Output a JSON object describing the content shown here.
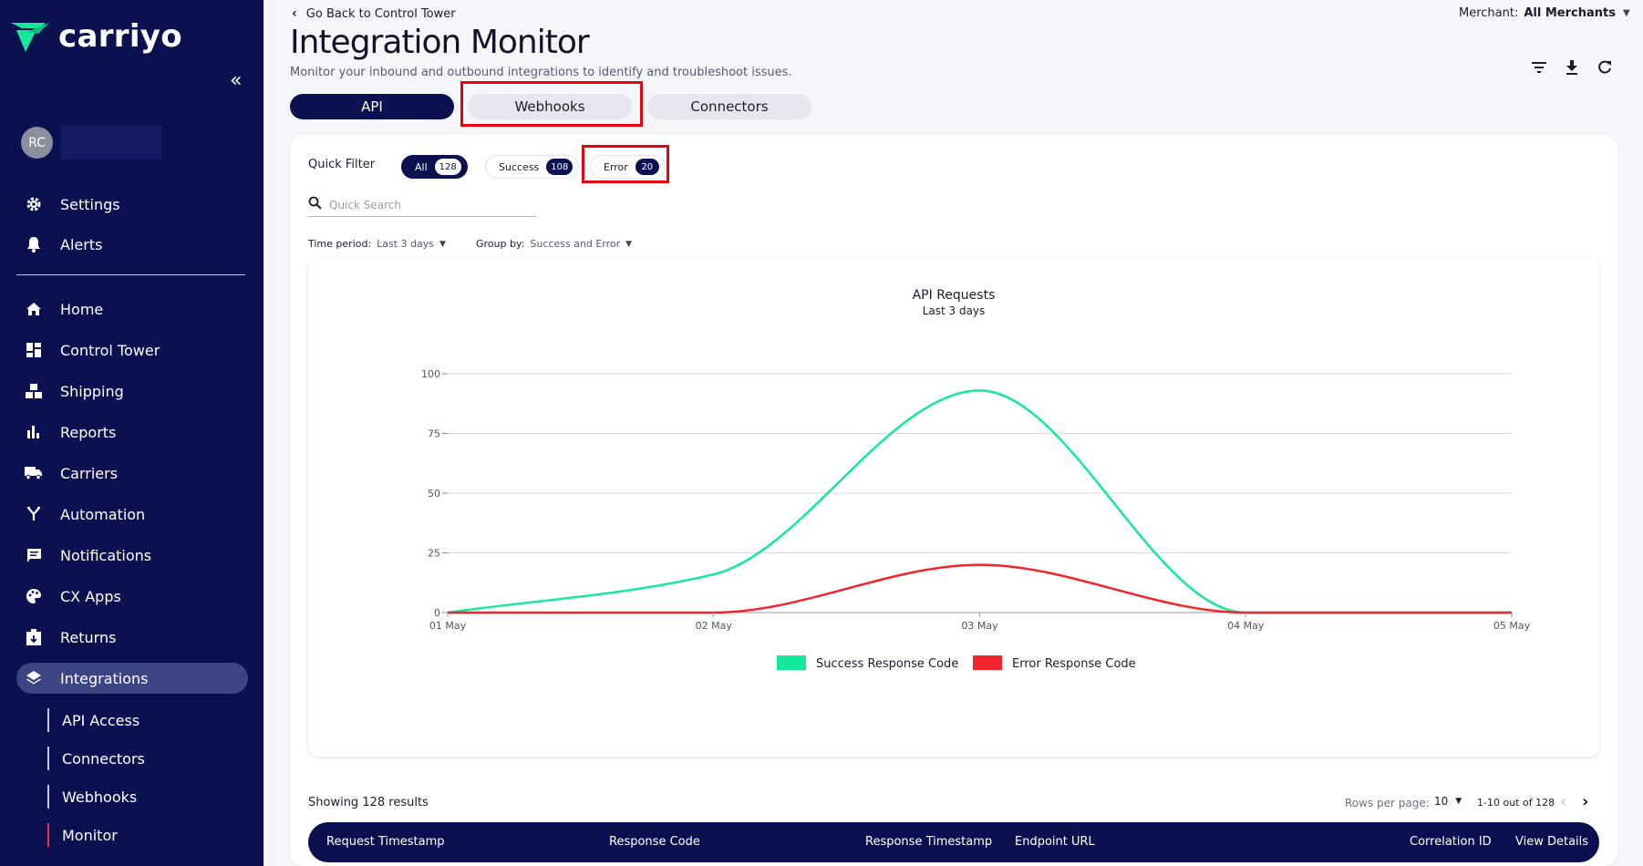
{
  "app": {
    "logo_text": "carriyo"
  },
  "user": {
    "initials": "RC"
  },
  "sidebar": {
    "top_items": [
      {
        "label": "Settings",
        "icon": "gear-icon"
      },
      {
        "label": "Alerts",
        "icon": "bell-icon"
      }
    ],
    "items": [
      {
        "label": "Home",
        "icon": "home-icon"
      },
      {
        "label": "Control Tower",
        "icon": "dashboard-icon"
      },
      {
        "label": "Shipping",
        "icon": "boxes-icon"
      },
      {
        "label": "Reports",
        "icon": "bar-chart-icon"
      },
      {
        "label": "Carriers",
        "icon": "truck-icon"
      },
      {
        "label": "Automation",
        "icon": "fork-icon"
      },
      {
        "label": "Notifications",
        "icon": "message-icon"
      },
      {
        "label": "CX Apps",
        "icon": "palette-icon"
      },
      {
        "label": "Returns",
        "icon": "return-box-icon"
      },
      {
        "label": "Integrations",
        "icon": "layers-icon"
      }
    ],
    "sub_items": [
      {
        "label": "API Access"
      },
      {
        "label": "Connectors"
      },
      {
        "label": "Webhooks"
      },
      {
        "label": "Monitor"
      }
    ]
  },
  "header": {
    "back_label": "Go Back to Control Tower",
    "title": "Integration Monitor",
    "subtitle": "Monitor your inbound and outbound integrations to identify and troubleshoot issues.",
    "merchant_label": "Merchant:",
    "merchant_value": "All Merchants"
  },
  "tabs": [
    {
      "label": "API"
    },
    {
      "label": "Webhooks"
    },
    {
      "label": "Connectors"
    }
  ],
  "quick_filter": {
    "label": "Quick Filter",
    "chips": [
      {
        "label": "All",
        "count": "128"
      },
      {
        "label": "Success",
        "count": "108"
      },
      {
        "label": "Error",
        "count": "20"
      }
    ]
  },
  "search": {
    "placeholder": "Quick Search"
  },
  "filters": {
    "time_period_label": "Time period:",
    "time_period_value": "Last 3 days",
    "group_by_label": "Group by:",
    "group_by_value": "Success and Error"
  },
  "chart_data": {
    "type": "line",
    "title": "API Requests",
    "subtitle": "Last 3 days",
    "x": [
      "01 May",
      "02 May",
      "03 May",
      "04 May",
      "05 May"
    ],
    "ylim": [
      0,
      100
    ],
    "yticks": [
      0,
      25,
      50,
      75,
      100
    ],
    "grid": true,
    "legend_position": "bottom",
    "series": [
      {
        "name": "Success Response Code",
        "color": "#14e89a",
        "values": [
          0,
          16,
          93,
          0,
          0
        ]
      },
      {
        "name": "Error Response Code",
        "color": "#f0242a",
        "values": [
          0,
          0,
          20,
          0,
          0
        ]
      }
    ]
  },
  "results": {
    "showing": "Showing 128 results",
    "rows_per_page_label": "Rows per page:",
    "rows_per_page_value": "10",
    "range": "1-10 out of 128"
  },
  "table": {
    "columns": [
      "Request Timestamp",
      "Response Code",
      "Response Timestamp",
      "Endpoint URL",
      "Correlation ID",
      "View Details"
    ]
  }
}
